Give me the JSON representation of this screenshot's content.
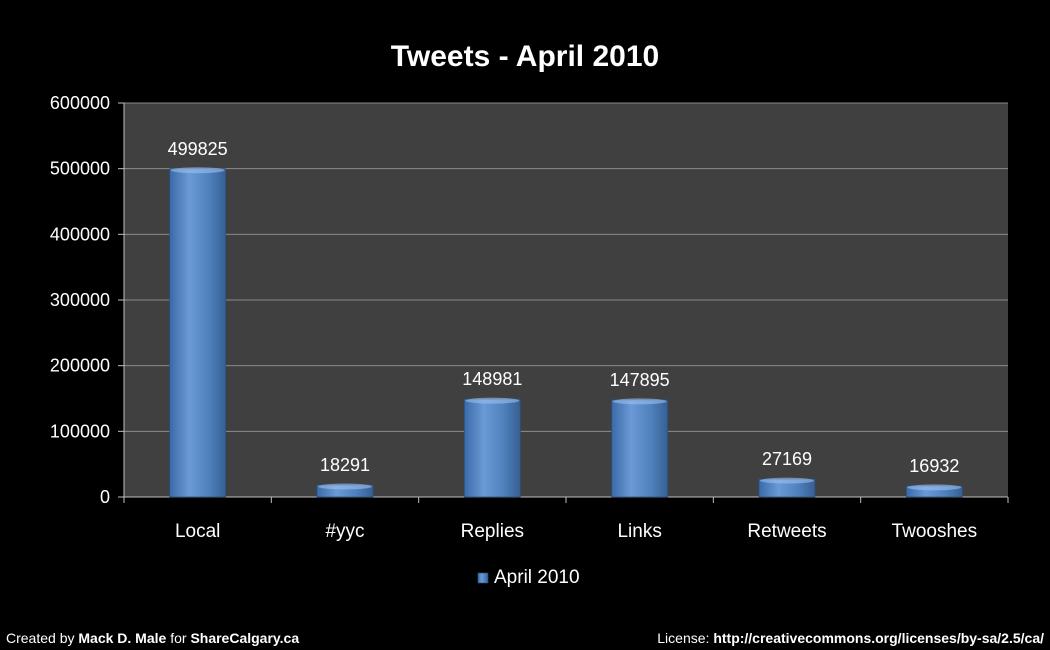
{
  "chart_data": {
    "type": "bar",
    "title": "Tweets - April 2010",
    "categories": [
      "Local",
      "#yyc",
      "Replies",
      "Links",
      "Retweets",
      "Twooshes"
    ],
    "series": [
      {
        "name": "April 2010",
        "values": [
          499825,
          18291,
          148981,
          147895,
          27169,
          16932
        ]
      }
    ],
    "ylim": [
      0,
      600000
    ],
    "yticks": [
      0,
      100000,
      200000,
      300000,
      400000,
      500000,
      600000
    ],
    "grid": true,
    "legend": "bottom",
    "data_labels": true,
    "colors": {
      "bar": "#4f81bd",
      "plot_bg": "#404040",
      "page_bg": "#000000"
    }
  },
  "footer": {
    "left_prefix": "Created by",
    "left_author": "Mack D. Male",
    "left_mid": "for",
    "left_site": "ShareCalgary.ca",
    "right_prefix": "License:",
    "right_url": "http://creativecommons.org/licenses/by-sa/2.5/ca/"
  }
}
